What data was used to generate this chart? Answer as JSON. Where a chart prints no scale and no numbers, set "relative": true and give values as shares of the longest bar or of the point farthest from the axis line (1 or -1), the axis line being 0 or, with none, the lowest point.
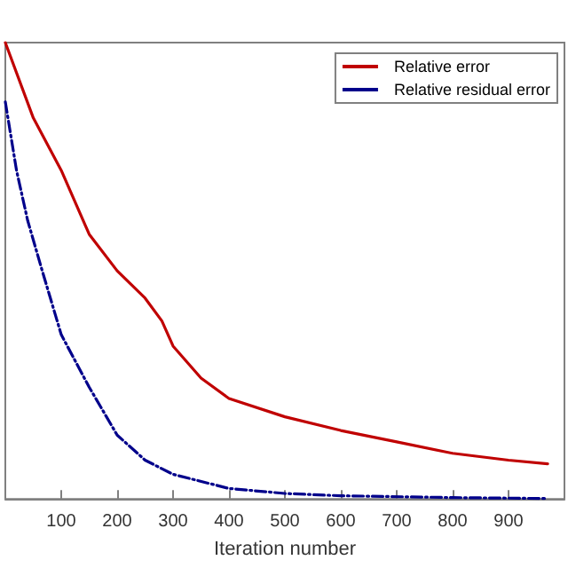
{
  "chart_data": {
    "type": "line",
    "xlabel": "Iteration number",
    "relative": true,
    "xlim": [
      0,
      1000
    ],
    "xticks": [
      100,
      200,
      300,
      400,
      500,
      600,
      700,
      800,
      900
    ],
    "legend": "top right",
    "grid": false,
    "marker": "none",
    "series": [
      {
        "name": "Relative error",
        "color": "#c00000",
        "line_style": "solid",
        "x": [
          0,
          50,
          100,
          150,
          200,
          250,
          280,
          300,
          350,
          400,
          500,
          600,
          700,
          800,
          900,
          970
        ],
        "values": [
          1.0,
          0.835,
          0.72,
          0.58,
          0.5,
          0.44,
          0.39,
          0.335,
          0.265,
          0.22,
          0.18,
          0.15,
          0.125,
          0.1,
          0.085,
          0.077
        ]
      },
      {
        "name": "Relative residual error",
        "color": "#00008b",
        "line_style": "dashed",
        "x": [
          0,
          20,
          40,
          66,
          100,
          150,
          200,
          250,
          300,
          400,
          500,
          600,
          800,
          970
        ],
        "values": [
          0.87,
          0.72,
          0.61,
          0.5,
          0.36,
          0.245,
          0.14,
          0.085,
          0.054,
          0.023,
          0.012,
          0.007,
          0.003,
          0.001
        ]
      }
    ]
  }
}
